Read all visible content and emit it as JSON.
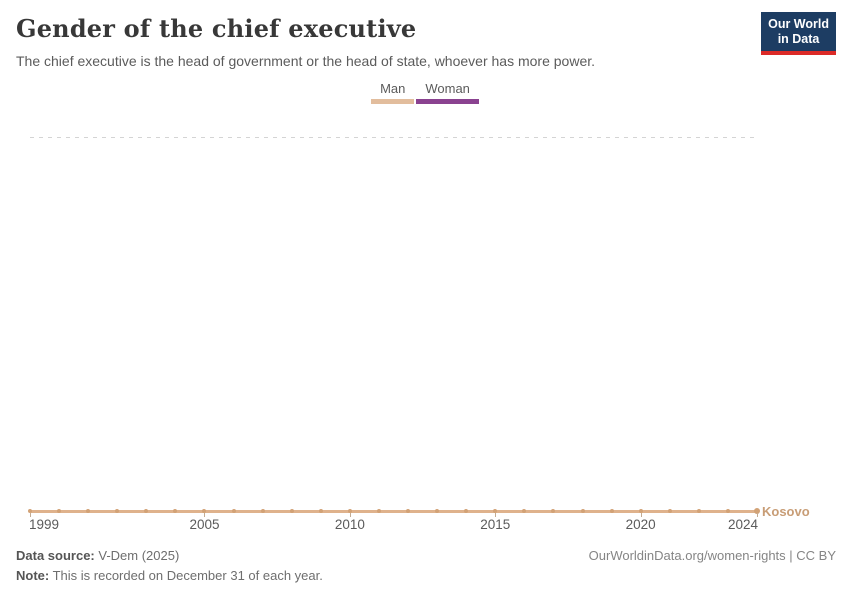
{
  "header": {
    "title": "Gender of the chief executive",
    "subtitle": "The chief executive is the head of government or the head of state, whoever has more power.",
    "logo": {
      "line1": "Our World",
      "line2": "in Data",
      "bg_color": "#1d3d63",
      "accent_color": "#dc2a27"
    }
  },
  "legend": {
    "items": [
      {
        "label": "Man",
        "color": "#e2bd9d"
      },
      {
        "label": "Woman",
        "color": "#8a4290"
      }
    ]
  },
  "chart_data": {
    "type": "line",
    "title": "Gender of the chief executive",
    "subtitle": "The chief executive is the head of government or the head of state, whoever has more power.",
    "entity_label": "Kosovo",
    "x": [
      1999,
      2000,
      2001,
      2002,
      2003,
      2004,
      2005,
      2006,
      2007,
      2008,
      2009,
      2010,
      2011,
      2012,
      2013,
      2014,
      2015,
      2016,
      2017,
      2018,
      2019,
      2020,
      2021,
      2022,
      2023,
      2024
    ],
    "series": [
      {
        "name": "Kosovo",
        "color": "#dfb28c",
        "point_color": "#d2a276",
        "values": [
          0,
          0,
          0,
          0,
          0,
          0,
          0,
          0,
          0,
          0,
          0,
          0,
          0,
          0,
          0,
          0,
          0,
          0,
          0,
          0,
          0,
          0,
          0,
          0,
          0,
          0
        ]
      }
    ],
    "value_encoding": {
      "0": "Man",
      "1": "Woman"
    },
    "legend_entries": [
      "Man",
      "Woman"
    ],
    "legend_position": "top-center",
    "ylim": [
      0,
      1
    ],
    "yticks": [
      0,
      1
    ],
    "xticks": [
      1999,
      2005,
      2010,
      2015,
      2020,
      2024
    ],
    "grid": "dashed line at y=1"
  },
  "footer": {
    "source_label": "Data source:",
    "source_value": " V-Dem (2025)",
    "note_label": "Note:",
    "note_value": " This is recorded on December 31 of each year.",
    "right_text": "OurWorldinData.org/women-rights | CC BY"
  }
}
